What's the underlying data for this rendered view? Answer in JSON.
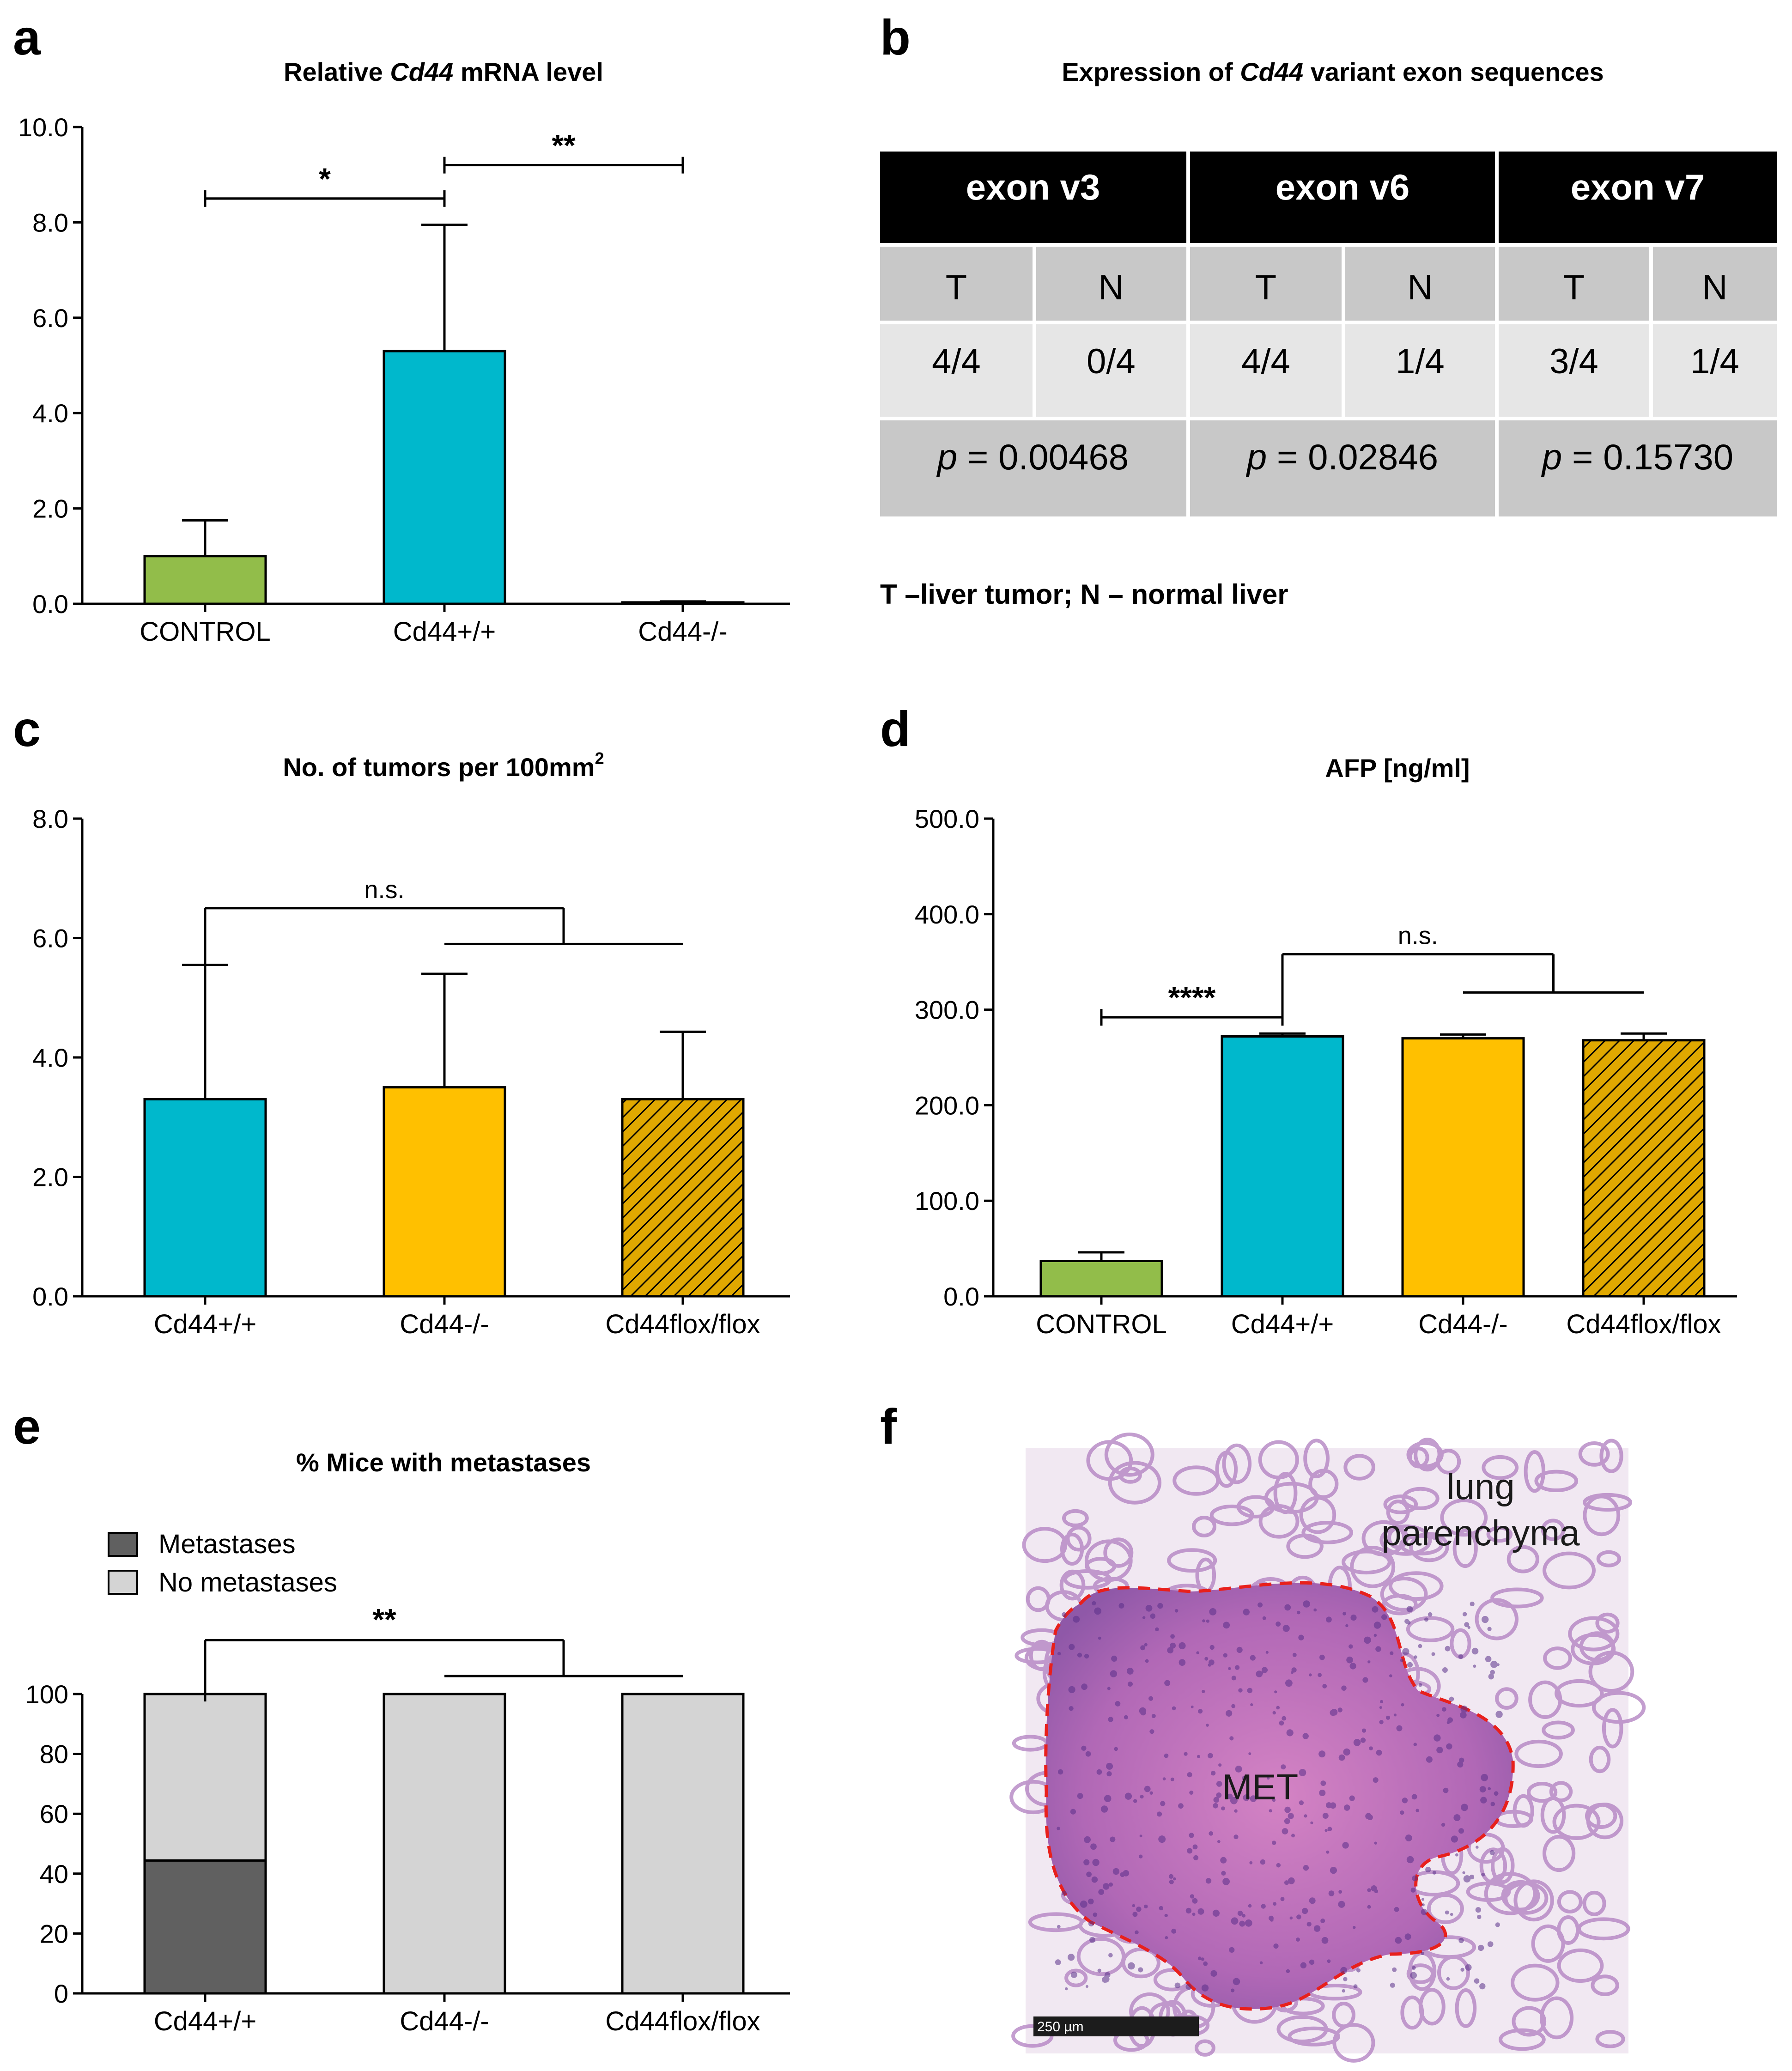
{
  "colors": {
    "control": "#92bd4a",
    "wt": "#00b8cc",
    "ko": "#ffc000",
    "flox": "#e0a800",
    "metastases": "#606060",
    "no_metastases": "#d4d4d4",
    "table_header": "#000000",
    "table_dark": "#c8c8c8",
    "table_light": "#e6e6e6",
    "histo_outline": "#e8201c"
  },
  "panels": {
    "a": {
      "label": "a",
      "title_pre": "Relative ",
      "title_em": "Cd44",
      "title_post": " mRNA level"
    },
    "b": {
      "label": "b",
      "title_pre": "Expression of ",
      "title_em": "Cd44",
      "title_post": " variant exon sequences"
    },
    "c": {
      "label": "c",
      "title_main": "No. of tumors per 100mm",
      "title_sup": "2"
    },
    "d": {
      "label": "d",
      "title": "AFP [ng/ml]"
    },
    "e": {
      "label": "e",
      "title": "% Mice with metastases"
    },
    "f": {
      "label": "f"
    }
  },
  "chart_data": [
    {
      "id": "a",
      "type": "bar",
      "title": "Relative Cd44 mRNA level",
      "categories": [
        "CONTROL",
        "Cd44+/+",
        "Cd44-/-"
      ],
      "values": [
        1.0,
        5.3,
        0.03
      ],
      "errors": [
        0.75,
        2.65,
        0.02
      ],
      "fills": [
        "control",
        "wt",
        "wt"
      ],
      "ylim": [
        0,
        10
      ],
      "yticks": [
        0,
        2,
        4,
        6,
        8,
        10
      ],
      "ytick_labels": [
        "0.0",
        "2.0",
        "4.0",
        "6.0",
        "8.0",
        "10.0"
      ],
      "significance": [
        {
          "from": 0,
          "to": 1,
          "label": "*",
          "y": 8.5
        },
        {
          "from": 1,
          "to": 2,
          "label": "**",
          "y": 9.2
        }
      ]
    },
    {
      "id": "c",
      "type": "bar",
      "title": "No. of tumors per 100mm2",
      "categories": [
        "Cd44+/+",
        "Cd44-/-",
        "Cd44flox/flox"
      ],
      "values": [
        3.3,
        3.5,
        3.3
      ],
      "errors": [
        2.25,
        1.9,
        1.13
      ],
      "fills": [
        "wt",
        "ko",
        "flox"
      ],
      "hatched": [
        false,
        false,
        true
      ],
      "ylim": [
        0,
        8
      ],
      "yticks": [
        0,
        2,
        4,
        6,
        8
      ],
      "ytick_labels": [
        "0.0",
        "2.0",
        "4.0",
        "6.0",
        "8.0"
      ],
      "group_bracket": {
        "left": 0,
        "right_from": 1,
        "right_to": 2,
        "label": "n.s.",
        "y_top": 6.5,
        "y_sub": 5.9
      }
    },
    {
      "id": "d",
      "type": "bar",
      "title": "AFP [ng/ml]",
      "categories": [
        "CONTROL",
        "Cd44+/+",
        "Cd44-/-",
        "Cd44flox/flox"
      ],
      "values": [
        37,
        272,
        270,
        268
      ],
      "errors": [
        9,
        3,
        4,
        7
      ],
      "fills": [
        "control",
        "wt",
        "ko",
        "flox"
      ],
      "hatched": [
        false,
        false,
        false,
        true
      ],
      "ylim": [
        0,
        500
      ],
      "yticks": [
        0,
        100,
        200,
        300,
        400,
        500
      ],
      "ytick_labels": [
        "0.0",
        "100.0",
        "200.0",
        "300.0",
        "400.0",
        "500.0"
      ],
      "significance": [
        {
          "from": 0,
          "to": 1,
          "label": "****",
          "y": 292
        }
      ],
      "group_bracket": {
        "left": 1,
        "right_from": 2,
        "right_to": 3,
        "label": "n.s.",
        "y_top": 358,
        "y_sub": 318
      }
    },
    {
      "id": "e",
      "type": "bar",
      "stacked": true,
      "title": "% Mice with metastases",
      "categories": [
        "Cd44+/+",
        "Cd44-/-",
        "Cd44flox/flox"
      ],
      "series": [
        {
          "name": "Metastases",
          "values": [
            44.4,
            0,
            0
          ],
          "fill": "metastases"
        },
        {
          "name": "No metastases",
          "values": [
            55.6,
            100,
            100
          ],
          "fill": "no_metastases"
        }
      ],
      "ylim": [
        0,
        100
      ],
      "yticks": [
        0,
        20,
        40,
        60,
        80,
        100
      ],
      "ytick_labels": [
        "0",
        "20",
        "40",
        "60",
        "80",
        "100"
      ],
      "group_bracket": {
        "left": 0,
        "right_from": 1,
        "right_to": 2,
        "label": "**",
        "y_top": 118,
        "y_sub": 106
      }
    }
  ],
  "table_b": {
    "exons": [
      {
        "name": "exon v3",
        "T": "4/4",
        "N": "0/4",
        "p_label": "p",
        "p_value": " = 0.00468"
      },
      {
        "name": "exon v6",
        "T": "4/4",
        "N": "1/4",
        "p_label": "p",
        "p_value": " = 0.02846"
      },
      {
        "name": "exon v7",
        "T": "3/4",
        "N": "1/4",
        "p_label": "p",
        "p_value": " = 0.15730"
      }
    ],
    "sub_T": "T",
    "sub_N": "N",
    "footnote": "T –liver tumor; N – normal liver"
  },
  "image_f": {
    "label_lung_1": "lung",
    "label_lung_2": "parenchyma",
    "label_met": "MET",
    "scale_bar": "250 µm"
  }
}
